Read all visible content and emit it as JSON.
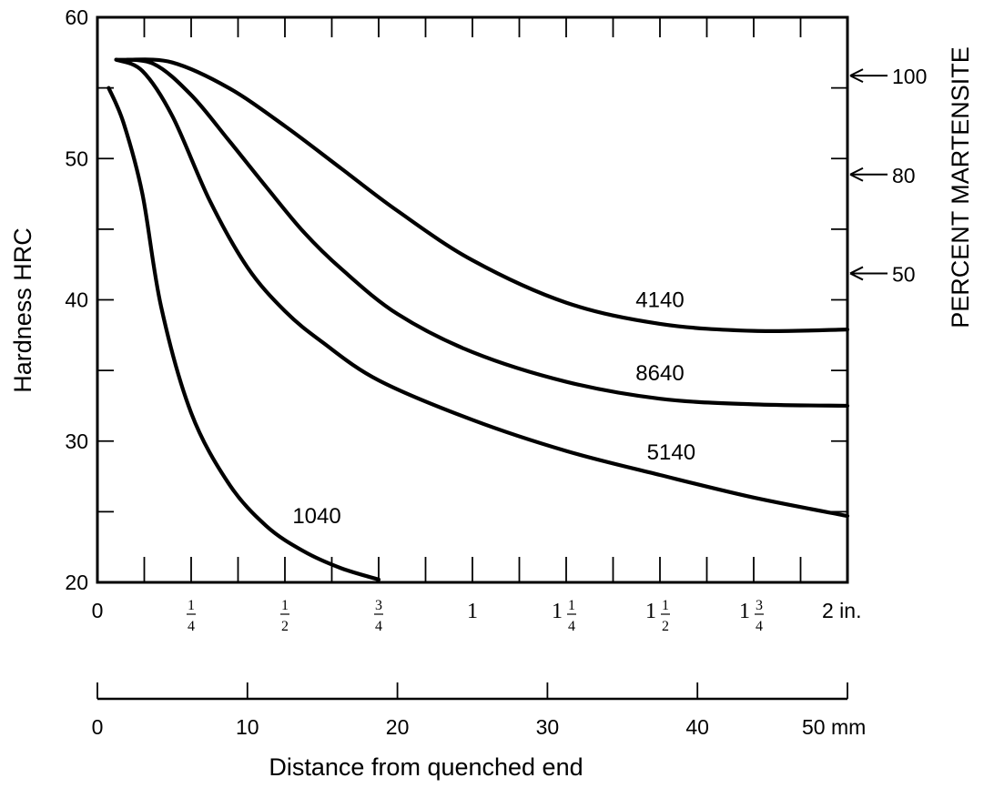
{
  "chart_data": {
    "type": "line",
    "ylabel": "Hardness HRC",
    "y2label": "PERCENT MARTENSITE",
    "xlabel": "Distance from quenched end",
    "ylim": [
      20,
      60
    ],
    "yticks": [
      "20",
      "30",
      "40",
      "50",
      "60"
    ],
    "xlim_in": [
      0,
      2
    ],
    "x_inch_labels": [
      {
        "v": 0,
        "whole": "0",
        "num": "",
        "den": ""
      },
      {
        "v": 0.25,
        "whole": "",
        "num": "1",
        "den": "4"
      },
      {
        "v": 0.5,
        "whole": "",
        "num": "1",
        "den": "2"
      },
      {
        "v": 0.75,
        "whole": "",
        "num": "3",
        "den": "4"
      },
      {
        "v": 1,
        "whole": "1",
        "num": "",
        "den": ""
      },
      {
        "v": 1.25,
        "whole": "1",
        "num": "1",
        "den": "4"
      },
      {
        "v": 1.5,
        "whole": "1",
        "num": "1",
        "den": "2"
      },
      {
        "v": 1.75,
        "whole": "1",
        "num": "3",
        "den": "4"
      },
      {
        "v": 2,
        "whole": "2 in.",
        "num": "",
        "den": ""
      }
    ],
    "x_mm_labels": [
      "0",
      "10",
      "20",
      "30",
      "40",
      "50 mm"
    ],
    "martensite_markers": [
      {
        "label": "100",
        "hrc": 56
      },
      {
        "label": "80",
        "hrc": 49
      },
      {
        "label": "50",
        "hrc": 42
      }
    ],
    "series": [
      {
        "name": "1040",
        "label_at": [
          0.585,
          24.2
        ],
        "points": [
          [
            0.03,
            55
          ],
          [
            0.07,
            52.5
          ],
          [
            0.12,
            47.5
          ],
          [
            0.17,
            39.5
          ],
          [
            0.25,
            32
          ],
          [
            0.35,
            27
          ],
          [
            0.45,
            24
          ],
          [
            0.55,
            22.2
          ],
          [
            0.65,
            21
          ],
          [
            0.75,
            20.2
          ]
        ]
      },
      {
        "name": "5140",
        "label_at": [
          1.53,
          28.7
        ],
        "points": [
          [
            0.05,
            57
          ],
          [
            0.12,
            56.2
          ],
          [
            0.2,
            53
          ],
          [
            0.3,
            47
          ],
          [
            0.4,
            42.3
          ],
          [
            0.5,
            39.2
          ],
          [
            0.6,
            37
          ],
          [
            0.75,
            34.3
          ],
          [
            1.0,
            31.5
          ],
          [
            1.25,
            29.3
          ],
          [
            1.5,
            27.6
          ],
          [
            1.75,
            26
          ],
          [
            2.0,
            24.7
          ]
        ]
      },
      {
        "name": "8640",
        "label_at": [
          1.5,
          34.3
        ],
        "points": [
          [
            0.05,
            57
          ],
          [
            0.15,
            56.7
          ],
          [
            0.25,
            54.5
          ],
          [
            0.35,
            51.3
          ],
          [
            0.45,
            48
          ],
          [
            0.55,
            44.8
          ],
          [
            0.65,
            42.2
          ],
          [
            0.8,
            39
          ],
          [
            1.0,
            36.3
          ],
          [
            1.25,
            34.2
          ],
          [
            1.5,
            33
          ],
          [
            1.75,
            32.6
          ],
          [
            2.0,
            32.5
          ]
        ]
      },
      {
        "name": "4140",
        "label_at": [
          1.5,
          39.5
        ],
        "points": [
          [
            0.08,
            57
          ],
          [
            0.2,
            56.8
          ],
          [
            0.35,
            55
          ],
          [
            0.5,
            52.3
          ],
          [
            0.65,
            49.3
          ],
          [
            0.8,
            46.3
          ],
          [
            1.0,
            42.8
          ],
          [
            1.25,
            39.8
          ],
          [
            1.5,
            38.3
          ],
          [
            1.75,
            37.8
          ],
          [
            2.0,
            37.9
          ]
        ]
      }
    ]
  }
}
